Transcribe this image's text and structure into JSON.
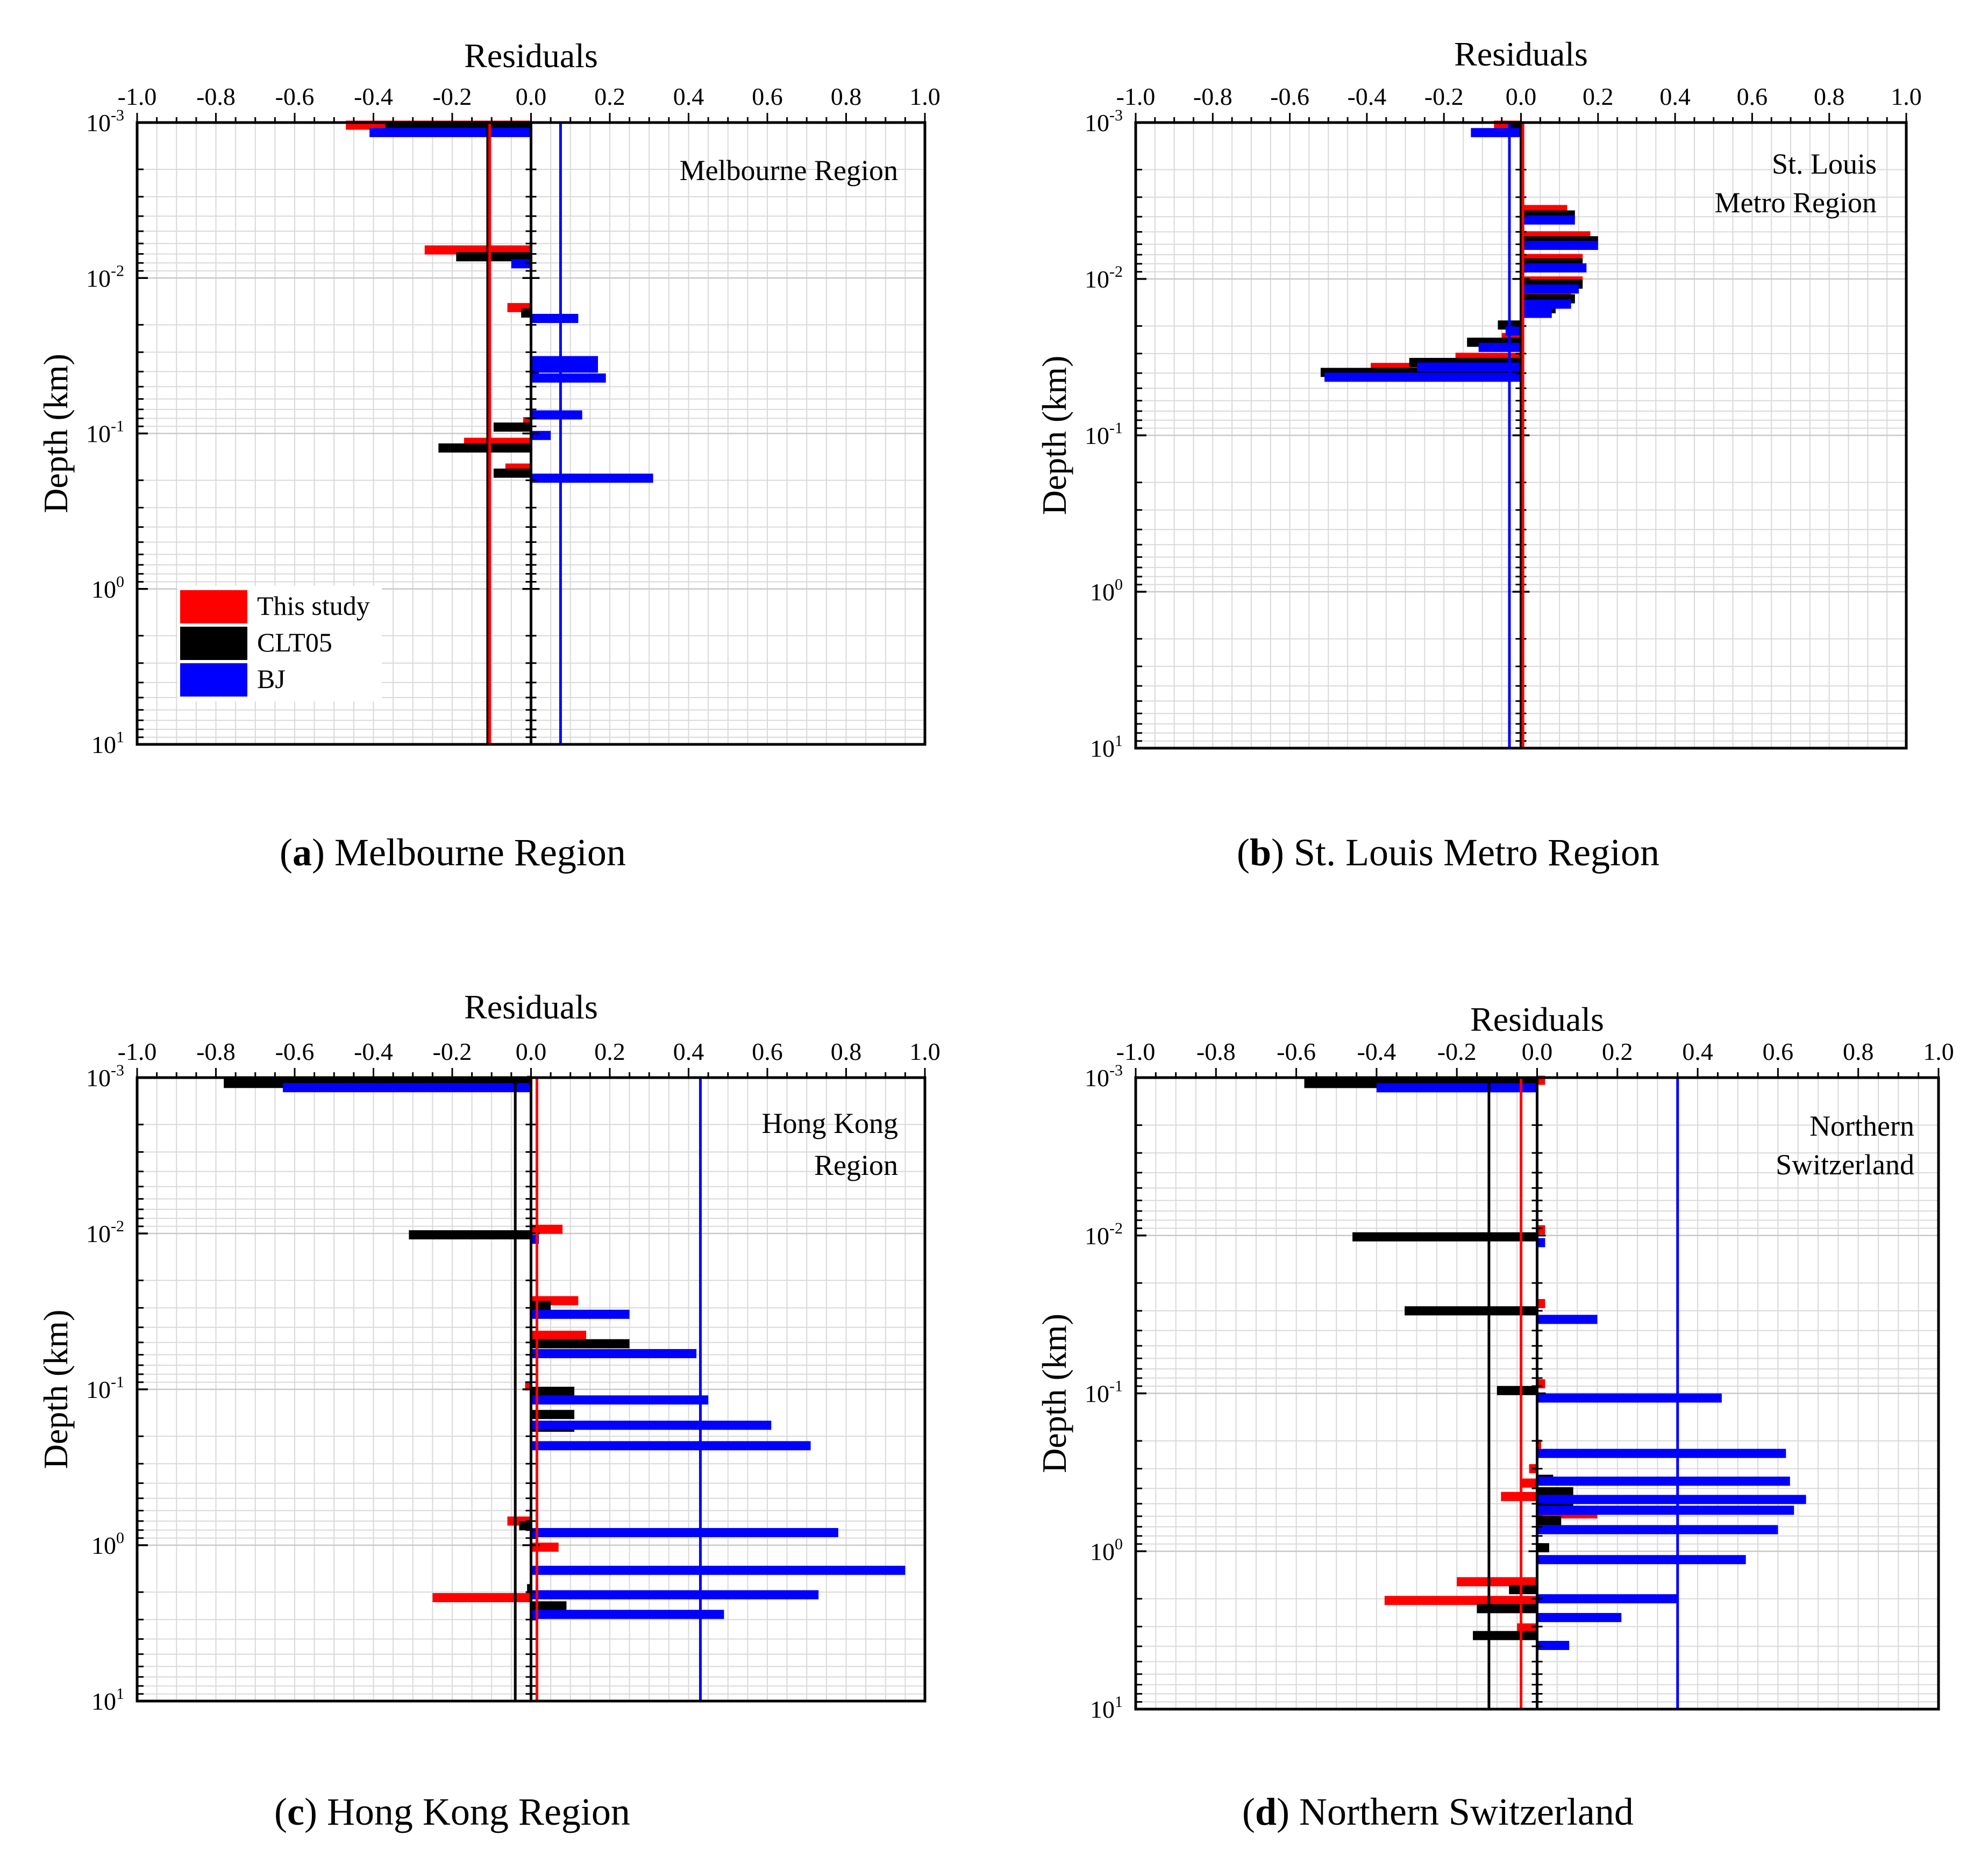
{
  "figure": {
    "legend": {
      "entries": [
        {
          "label": "This study",
          "color": "#ff0000"
        },
        {
          "label": "CLT05",
          "color": "#000000"
        },
        {
          "label": "BJ",
          "color": "#0000ff"
        }
      ]
    }
  },
  "captions": [
    {
      "letter": "a",
      "text": "Melbourne Region"
    },
    {
      "letter": "b",
      "text": "St. Louis Metro Region"
    },
    {
      "letter": "c",
      "text": "Hong Kong Region"
    },
    {
      "letter": "d",
      "text": "Northern Switzerland"
    }
  ],
  "chart_data": [
    {
      "type": "bar",
      "orientation": "horizontal",
      "title": "Melbourne Region",
      "title_lines": [
        "Melbourne Region"
      ],
      "xlabel": "Residuals",
      "ylabel": "Depth (km)",
      "xlim": [
        -1.0,
        1.0
      ],
      "xticks": [
        "-1.0",
        "-0.8",
        "-0.6",
        "-0.4",
        "-0.2",
        "0.0",
        "0.2",
        "0.4",
        "0.6",
        "0.8",
        "1.0"
      ],
      "yscale": "log",
      "ylim": [
        0.001,
        10
      ],
      "yticks": [
        {
          "base": "10",
          "exp": "-3"
        },
        {
          "base": "10",
          "exp": "-2"
        },
        {
          "base": "10",
          "exp": "-1"
        },
        {
          "base": "10",
          "exp": "0"
        },
        {
          "base": "10",
          "exp": "1"
        }
      ],
      "grid": true,
      "legend": true,
      "mean_lines": {
        "This study": -0.105,
        "CLT05": -0.11,
        "BJ": 0.075
      },
      "series": [
        {
          "name": "This study",
          "color": "#ff0000",
          "depth": [
            0.00104,
            0.0066,
            0.0155,
            0.036,
            0.084,
            0.114,
            0.167
          ],
          "values": [
            -0.47,
            -0.27,
            -0.06,
            0.04,
            -0.02,
            -0.17,
            -0.065
          ]
        },
        {
          "name": "CLT05",
          "color": "#000000",
          "depth": [
            0.00109,
            0.0073,
            0.0168,
            0.04,
            0.091,
            0.124,
            0.18
          ],
          "values": [
            -0.37,
            -0.19,
            -0.025,
            0.02,
            -0.095,
            -0.235,
            -0.095
          ]
        },
        {
          "name": "BJ",
          "color": "#0000ff",
          "depth": [
            0.00116,
            0.0081,
            0.0182,
            0.034,
            0.038,
            0.044,
            0.076,
            0.103,
            0.194
          ],
          "values": [
            -0.41,
            -0.05,
            0.12,
            0.17,
            0.17,
            0.19,
            0.13,
            0.05,
            0.31
          ]
        }
      ]
    },
    {
      "type": "bar",
      "orientation": "horizontal",
      "title": "St. Louis Metro Region",
      "title_lines": [
        "St. Louis",
        "Metro Region"
      ],
      "xlabel": "Residuals",
      "ylabel": "Depth (km)",
      "xlim": [
        -1.0,
        1.0
      ],
      "xticks": [
        "-1.0",
        "-0.8",
        "-0.6",
        "-0.4",
        "-0.2",
        "0.0",
        "0.2",
        "0.4",
        "0.6",
        "0.8",
        "1.0"
      ],
      "yscale": "log",
      "ylim": [
        0.001,
        10
      ],
      "yticks": [
        {
          "base": "10",
          "exp": "-3"
        },
        {
          "base": "10",
          "exp": "-2"
        },
        {
          "base": "10",
          "exp": "-1"
        },
        {
          "base": "10",
          "exp": "0"
        },
        {
          "base": "10",
          "exp": "1"
        }
      ],
      "grid": true,
      "legend": false,
      "mean_lines": {
        "This study": 0.005,
        "CLT05": 0.005,
        "BJ": -0.03
      },
      "series": [
        {
          "name": "This study",
          "color": "#ff0000",
          "depth": [
            0.00104,
            0.0036,
            0.0053,
            0.0074,
            0.0103,
            0.0127,
            0.0148,
            0.0237,
            0.0317,
            0.0368
          ],
          "values": [
            -0.07,
            0.12,
            0.18,
            0.16,
            0.16,
            0.13,
            0.03,
            -0.05,
            -0.17,
            -0.39
          ]
        },
        {
          "name": "CLT05",
          "color": "#000000",
          "depth": [
            0.00109,
            0.0039,
            0.0057,
            0.0079,
            0.0108,
            0.0134,
            0.0155,
            0.0197,
            0.0254,
            0.0342,
            0.0396
          ],
          "values": [
            -0.03,
            0.14,
            0.2,
            0.16,
            0.16,
            0.14,
            0.09,
            -0.06,
            -0.14,
            -0.29,
            -0.52
          ]
        },
        {
          "name": "BJ",
          "color": "#0000ff",
          "depth": [
            0.00116,
            0.0042,
            0.0061,
            0.0085,
            0.0116,
            0.0145,
            0.0166,
            0.0215,
            0.0274,
            0.0366,
            0.0425
          ],
          "values": [
            -0.13,
            0.14,
            0.2,
            0.17,
            0.15,
            0.13,
            0.08,
            -0.04,
            -0.11,
            -0.27,
            -0.51
          ]
        }
      ]
    },
    {
      "type": "bar",
      "orientation": "horizontal",
      "title": "Hong Kong Region",
      "title_lines": [
        "Hong Kong",
        "Region"
      ],
      "xlabel": "Residuals",
      "ylabel": "Depth (km)",
      "xlim": [
        -1.0,
        1.0
      ],
      "xticks": [
        "-1.0",
        "-0.8",
        "-0.6",
        "-0.4",
        "-0.2",
        "0.0",
        "0.2",
        "0.4",
        "0.6",
        "0.8",
        "1.0"
      ],
      "yscale": "log",
      "ylim": [
        0.001,
        10
      ],
      "yticks": [
        {
          "base": "10",
          "exp": "-3"
        },
        {
          "base": "10",
          "exp": "-2"
        },
        {
          "base": "10",
          "exp": "-1"
        },
        {
          "base": "10",
          "exp": "0"
        },
        {
          "base": "10",
          "exp": "1"
        }
      ],
      "grid": true,
      "legend": false,
      "mean_lines": {
        "This study": 0.015,
        "CLT05": -0.04,
        "BJ": 0.43
      },
      "series": [
        {
          "name": "This study",
          "color": "#ff0000",
          "depth": [
            0.00104,
            0.0094,
            0.027,
            0.045,
            0.095,
            0.7,
            1.03,
            2.17
          ],
          "values": [
            -0.01,
            0.08,
            0.12,
            0.14,
            -0.015,
            -0.06,
            0.07,
            -0.25
          ]
        },
        {
          "name": "CLT05",
          "color": "#000000",
          "depth": [
            0.00109,
            0.0102,
            0.029,
            0.051,
            0.103,
            0.145,
            0.175,
            0.75,
            1.9,
            2.45
          ],
          "values": [
            -0.78,
            -0.31,
            0.05,
            0.25,
            0.11,
            0.11,
            0.11,
            -0.03,
            -0.01,
            0.09
          ]
        },
        {
          "name": "BJ",
          "color": "#0000ff",
          "depth": [
            0.00116,
            0.0109,
            0.033,
            0.059,
            0.117,
            0.17,
            0.23,
            0.83,
            1.45,
            2.08,
            2.78
          ],
          "values": [
            -0.63,
            0.02,
            0.25,
            0.42,
            0.45,
            0.61,
            0.71,
            0.78,
            0.95,
            0.73,
            0.49
          ]
        }
      ]
    },
    {
      "type": "bar",
      "orientation": "horizontal",
      "title": "Northern Switzerland",
      "title_lines": [
        "Northern",
        "Switzerland"
      ],
      "xlabel": "Residuals",
      "ylabel": "Depth (km)",
      "xlim": [
        -1.0,
        1.0
      ],
      "xticks": [
        "-1.0",
        "-0.8",
        "-0.6",
        "-0.4",
        "-0.2",
        "0.0",
        "0.2",
        "0.4",
        "0.6",
        "0.8",
        "1.0"
      ],
      "yscale": "log",
      "ylim": [
        0.001,
        10
      ],
      "yticks": [
        {
          "base": "10",
          "exp": "-3"
        },
        {
          "base": "10",
          "exp": "-2"
        },
        {
          "base": "10",
          "exp": "-1"
        },
        {
          "base": "10",
          "exp": "0"
        },
        {
          "base": "10",
          "exp": "1"
        }
      ],
      "grid": true,
      "legend": false,
      "mean_lines": {
        "This study": -0.04,
        "CLT05": -0.12,
        "BJ": 0.35
      },
      "series": [
        {
          "name": "This study",
          "color": "#ff0000",
          "depth": [
            0.00104,
            0.0092,
            0.027,
            0.087,
            0.21,
            0.3,
            0.37,
            0.45,
            0.58,
            1.56,
            2.05,
            3.06
          ],
          "values": [
            0.02,
            0.02,
            0.02,
            0.02,
            0.01,
            -0.02,
            -0.04,
            -0.09,
            0.15,
            -0.2,
            -0.38,
            -0.05
          ]
        },
        {
          "name": "CLT05",
          "color": "#000000",
          "depth": [
            0.00109,
            0.0102,
            0.03,
            0.096,
            0.35,
            0.42,
            0.51,
            0.64,
            0.95,
            1.75,
            2.31,
            3.42
          ],
          "values": [
            -0.58,
            -0.46,
            -0.33,
            -0.1,
            0.04,
            0.09,
            0.09,
            0.06,
            0.03,
            -0.07,
            -0.15,
            -0.16
          ]
        },
        {
          "name": "BJ",
          "color": "#0000ff",
          "depth": [
            0.00116,
            0.0111,
            0.034,
            0.107,
            0.24,
            0.36,
            0.47,
            0.55,
            0.73,
            1.13,
            2.0,
            2.63,
            3.95
          ],
          "values": [
            -0.4,
            0.02,
            0.15,
            0.46,
            0.62,
            0.63,
            0.67,
            0.64,
            0.6,
            0.52,
            0.35,
            0.21,
            0.08
          ]
        }
      ]
    }
  ]
}
